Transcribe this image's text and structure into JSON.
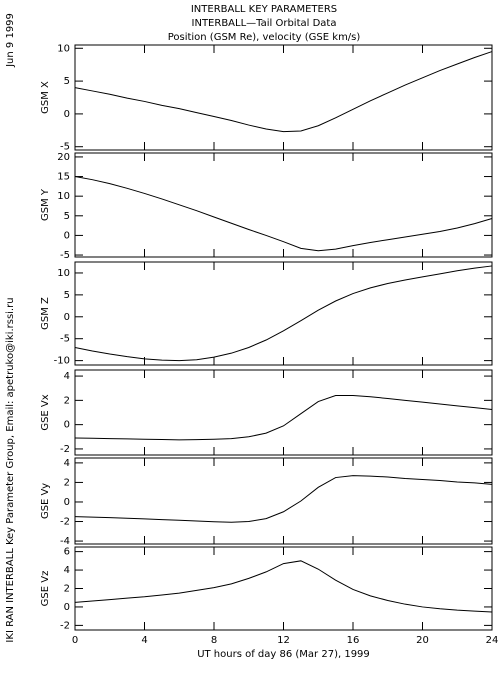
{
  "header": [
    "INTERBALL KEY PARAMETERS",
    "INTERBALL—Tail Orbital Data",
    "Position (GSM Re), velocity (GSE km/s)"
  ],
  "date": "Jun  9 1999",
  "credit": "IKI RAN INTERBALL Key Parameter Group, Email: apetruko@iki.rssi.ru",
  "chart_data": [
    {
      "type": "line",
      "ylabel": "GSM X",
      "color": "#000000",
      "x": [
        0,
        1,
        2,
        3,
        4,
        5,
        6,
        7,
        8,
        9,
        10,
        11,
        12,
        13,
        14,
        15,
        16,
        17,
        18,
        19,
        20,
        21,
        22,
        23,
        24
      ],
      "values": [
        4.0,
        3.5,
        3.0,
        2.4,
        1.9,
        1.3,
        0.8,
        0.2,
        -0.4,
        -1.0,
        -1.7,
        -2.3,
        -2.7,
        -2.6,
        -1.8,
        -0.6,
        0.7,
        2.0,
        3.2,
        4.4,
        5.5,
        6.6,
        7.6,
        8.6,
        9.5
      ],
      "xlim": [
        0,
        24
      ],
      "xticks": [
        0,
        4,
        8,
        12,
        16,
        20,
        24
      ],
      "ylim": [
        -5.5,
        10.5
      ],
      "yticks": [
        -5,
        0,
        5,
        10
      ]
    },
    {
      "type": "line",
      "ylabel": "GSM Y",
      "color": "#000000",
      "x": [
        0,
        1,
        2,
        3,
        4,
        5,
        6,
        7,
        8,
        9,
        10,
        11,
        12,
        13,
        14,
        15,
        16,
        17,
        18,
        19,
        20,
        21,
        22,
        23,
        24
      ],
      "values": [
        15,
        14.2,
        13.2,
        12,
        10.7,
        9.3,
        7.8,
        6.3,
        4.7,
        3.1,
        1.5,
        0,
        -1.6,
        -3.3,
        -3.9,
        -3.5,
        -2.6,
        -1.8,
        -1.1,
        -0.4,
        0.3,
        1.0,
        1.9,
        3.0,
        4.3
      ],
      "xlim": [
        0,
        24
      ],
      "xticks": [
        0,
        4,
        8,
        12,
        16,
        20,
        24
      ],
      "ylim": [
        -5.5,
        21
      ],
      "yticks": [
        -5,
        0,
        5,
        10,
        15,
        20
      ]
    },
    {
      "type": "line",
      "ylabel": "GSM Z",
      "color": "#000000",
      "x": [
        0,
        1,
        2,
        3,
        4,
        5,
        6,
        7,
        8,
        9,
        10,
        11,
        12,
        13,
        14,
        15,
        16,
        17,
        18,
        19,
        20,
        21,
        22,
        23,
        24
      ],
      "values": [
        -7,
        -7.8,
        -8.5,
        -9.1,
        -9.6,
        -9.9,
        -10,
        -9.8,
        -9.2,
        -8.3,
        -7,
        -5.3,
        -3.2,
        -0.9,
        1.5,
        3.6,
        5.3,
        6.6,
        7.6,
        8.4,
        9.1,
        9.8,
        10.5,
        11.1,
        11.6
      ],
      "xlim": [
        0,
        24
      ],
      "xticks": [
        0,
        4,
        8,
        12,
        16,
        20,
        24
      ],
      "ylim": [
        -11,
        12.5
      ],
      "yticks": [
        -10,
        -5,
        0,
        5,
        10
      ]
    },
    {
      "type": "line",
      "ylabel": "GSE Vx",
      "color": "#000000",
      "x": [
        0,
        1,
        2,
        3,
        4,
        5,
        6,
        7,
        8,
        9,
        10,
        11,
        12,
        13,
        14,
        15,
        16,
        17,
        18,
        19,
        20,
        21,
        22,
        23,
        24
      ],
      "values": [
        -1.1,
        -1.12,
        -1.15,
        -1.17,
        -1.2,
        -1.22,
        -1.25,
        -1.23,
        -1.2,
        -1.15,
        -1.0,
        -0.7,
        -0.1,
        0.9,
        1.9,
        2.4,
        2.4,
        2.3,
        2.15,
        2.0,
        1.85,
        1.7,
        1.55,
        1.4,
        1.25
      ],
      "xlim": [
        0,
        24
      ],
      "xticks": [
        0,
        4,
        8,
        12,
        16,
        20,
        24
      ],
      "ylim": [
        -2.5,
        4.5
      ],
      "yticks": [
        -2,
        0,
        2,
        4
      ]
    },
    {
      "type": "line",
      "ylabel": "GSE Vy",
      "color": "#000000",
      "x": [
        0,
        1,
        2,
        3,
        4,
        5,
        6,
        7,
        8,
        9,
        10,
        11,
        12,
        13,
        14,
        15,
        16,
        17,
        18,
        19,
        20,
        21,
        22,
        23,
        24
      ],
      "values": [
        -1.5,
        -1.55,
        -1.6,
        -1.67,
        -1.73,
        -1.8,
        -1.87,
        -1.95,
        -2.02,
        -2.08,
        -2.0,
        -1.7,
        -1.0,
        0.1,
        1.5,
        2.5,
        2.7,
        2.65,
        2.55,
        2.4,
        2.3,
        2.2,
        2.05,
        1.95,
        1.8
      ],
      "xlim": [
        0,
        24
      ],
      "xticks": [
        0,
        4,
        8,
        12,
        16,
        20,
        24
      ],
      "ylim": [
        -4.3,
        4.5
      ],
      "yticks": [
        -4,
        -2,
        0,
        2,
        4
      ]
    },
    {
      "type": "line",
      "ylabel": "GSE Vz",
      "color": "#000000",
      "x": [
        0,
        1,
        2,
        3,
        4,
        5,
        6,
        7,
        8,
        9,
        10,
        11,
        12,
        13,
        14,
        15,
        16,
        17,
        18,
        19,
        20,
        21,
        22,
        23,
        24
      ],
      "values": [
        0.5,
        0.65,
        0.8,
        0.95,
        1.1,
        1.3,
        1.5,
        1.8,
        2.1,
        2.5,
        3.1,
        3.8,
        4.7,
        5.0,
        4.1,
        2.9,
        1.9,
        1.2,
        0.7,
        0.3,
        0.0,
        -0.2,
        -0.35,
        -0.45,
        -0.55
      ],
      "xlim": [
        0,
        24
      ],
      "xticks": [
        0,
        4,
        8,
        12,
        16,
        20,
        24
      ],
      "ylim": [
        -2.5,
        6.5
      ],
      "yticks": [
        -2,
        0,
        2,
        4,
        6
      ],
      "xlabel": "UT hours of day  86 (Mar 27), 1999"
    }
  ]
}
